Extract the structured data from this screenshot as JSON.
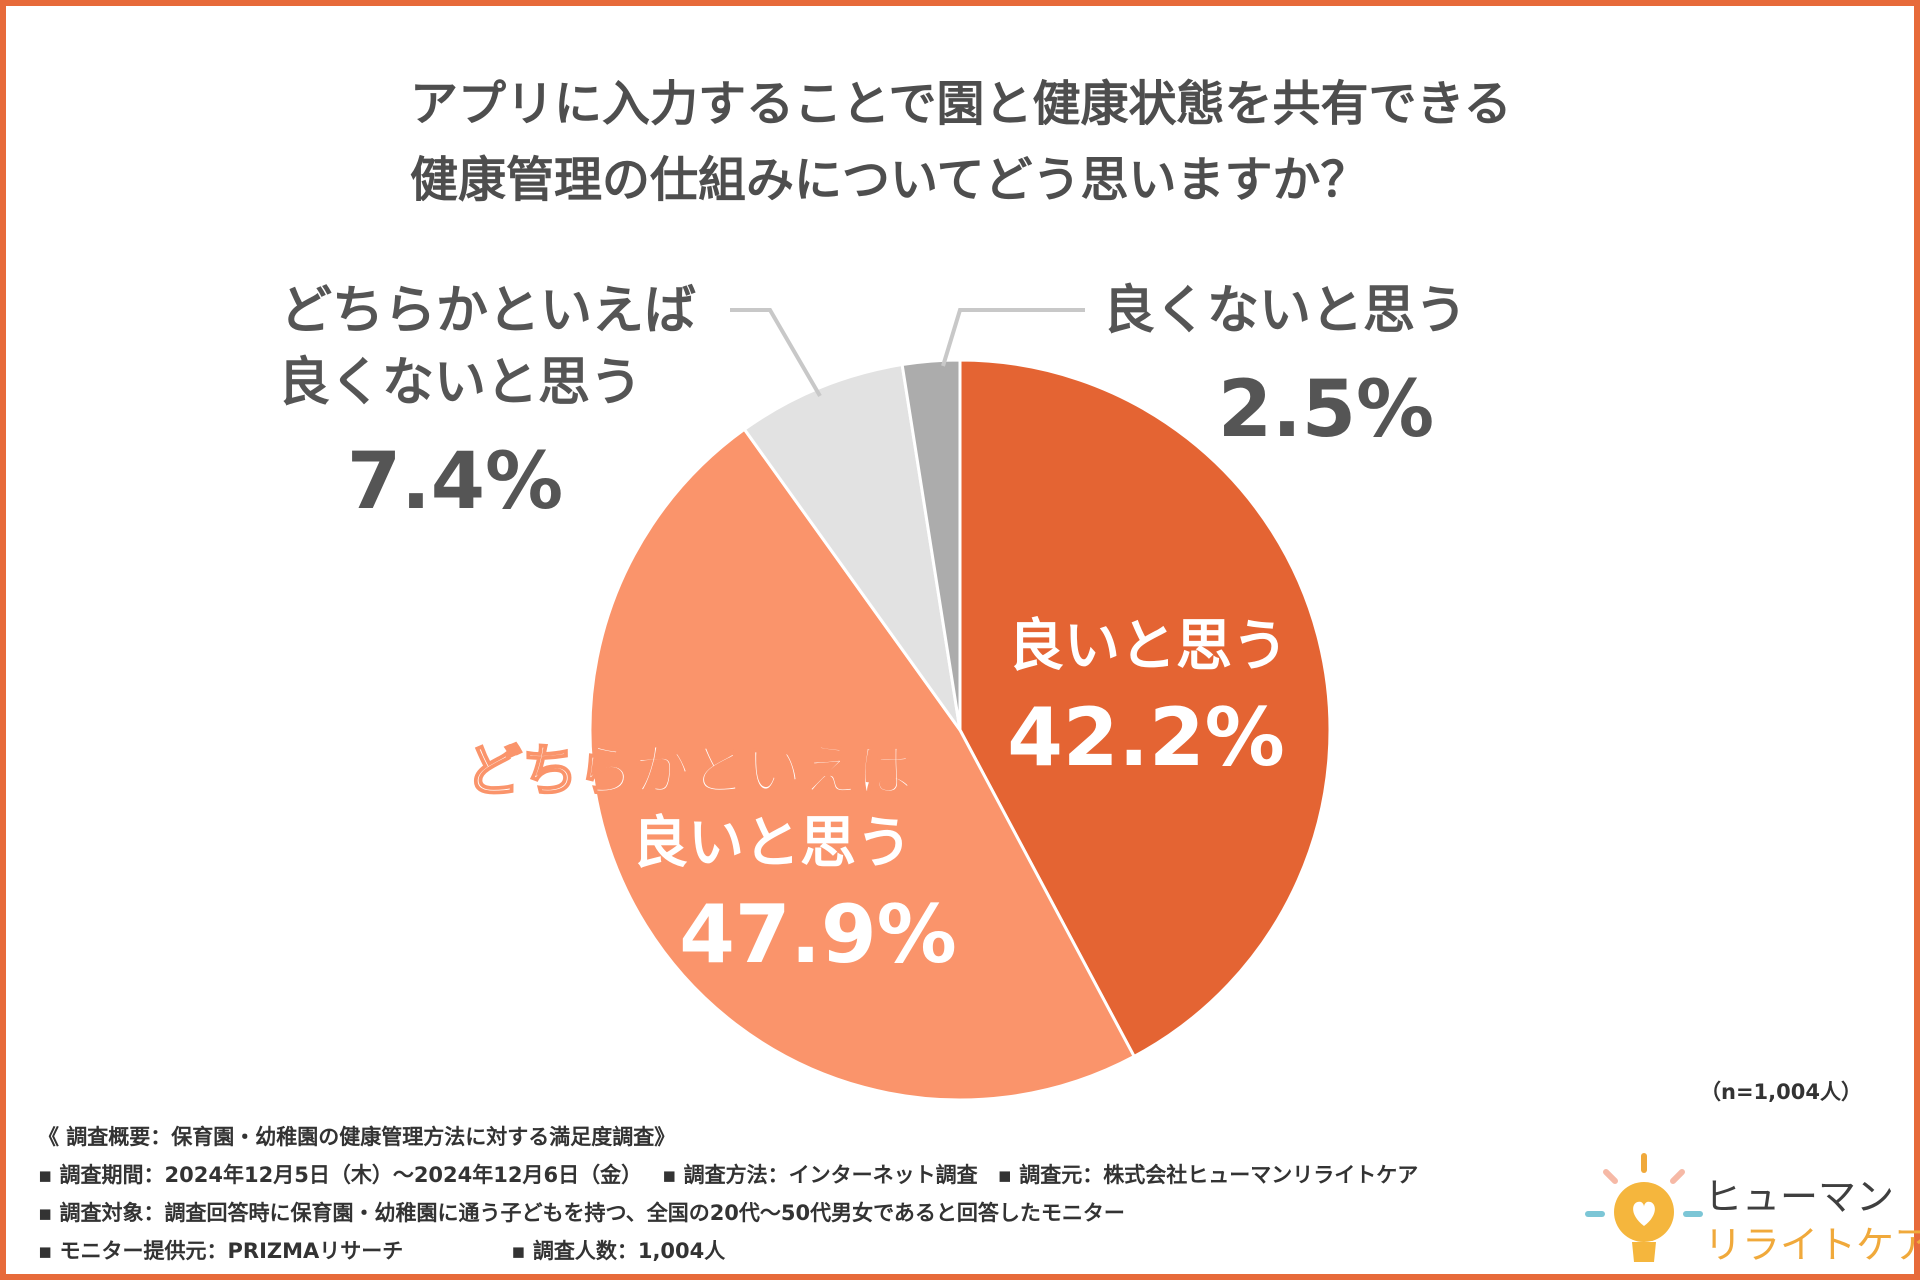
{
  "title_lines": [
    "アプリに入力することで園と健康状態を共有できる",
    "健康管理の仕組みについてどう思いますか？"
  ],
  "chart_data": {
    "type": "pie",
    "title": "アプリに入力することで園と健康状態を共有できる健康管理の仕組みについてどう思いますか？",
    "slices": [
      {
        "label_lines": [
          "良いと思う"
        ],
        "value": 42.2,
        "value_text": "42.2%",
        "color": "#e46433",
        "label_color": "#ffffff"
      },
      {
        "label_lines": [
          "どちらかといえば",
          "良いと思う"
        ],
        "value": 47.9,
        "value_text": "47.9%",
        "color": "#fa946b",
        "label_color": "#ffffff"
      },
      {
        "label_lines": [
          "どちらかといえば",
          "良くないと思う"
        ],
        "value": 7.4,
        "value_text": "7.4%",
        "color": "#e2e2e2",
        "label_color": "#555555"
      },
      {
        "label_lines": [
          "良くないと思う"
        ],
        "value": 2.5,
        "value_text": "2.5%",
        "color": "#acacac",
        "label_color": "#555555"
      }
    ],
    "start": "top, clockwise"
  },
  "sample_size": "（n=1,004人）",
  "footer": {
    "heading": "《 調査概要：保育園・幼稚園の健康管理方法に対する満足度調査》",
    "period": "▪ 調査期間：2024年12月5日（木）～2024年12月6日（金）",
    "method": "▪ 調査方法：インターネット調査",
    "source": "▪ 調査元：株式会社ヒューマンリライトケア",
    "target": "▪ 調査対象：調査回答時に保育園・幼稚園に通う子どもを持つ、全国の20代～50代男女であると回答したモニター",
    "provider": "▪ モニター提供元：PRIZMAリサーチ",
    "count": "▪ 調査人数：1,004人"
  },
  "logo": {
    "line1": "ヒューマン",
    "line2": "リライトケア",
    "icon": "lightbulb-heart-icon"
  },
  "colors": {
    "border": "#e76a3a",
    "accent": "#e46433"
  }
}
